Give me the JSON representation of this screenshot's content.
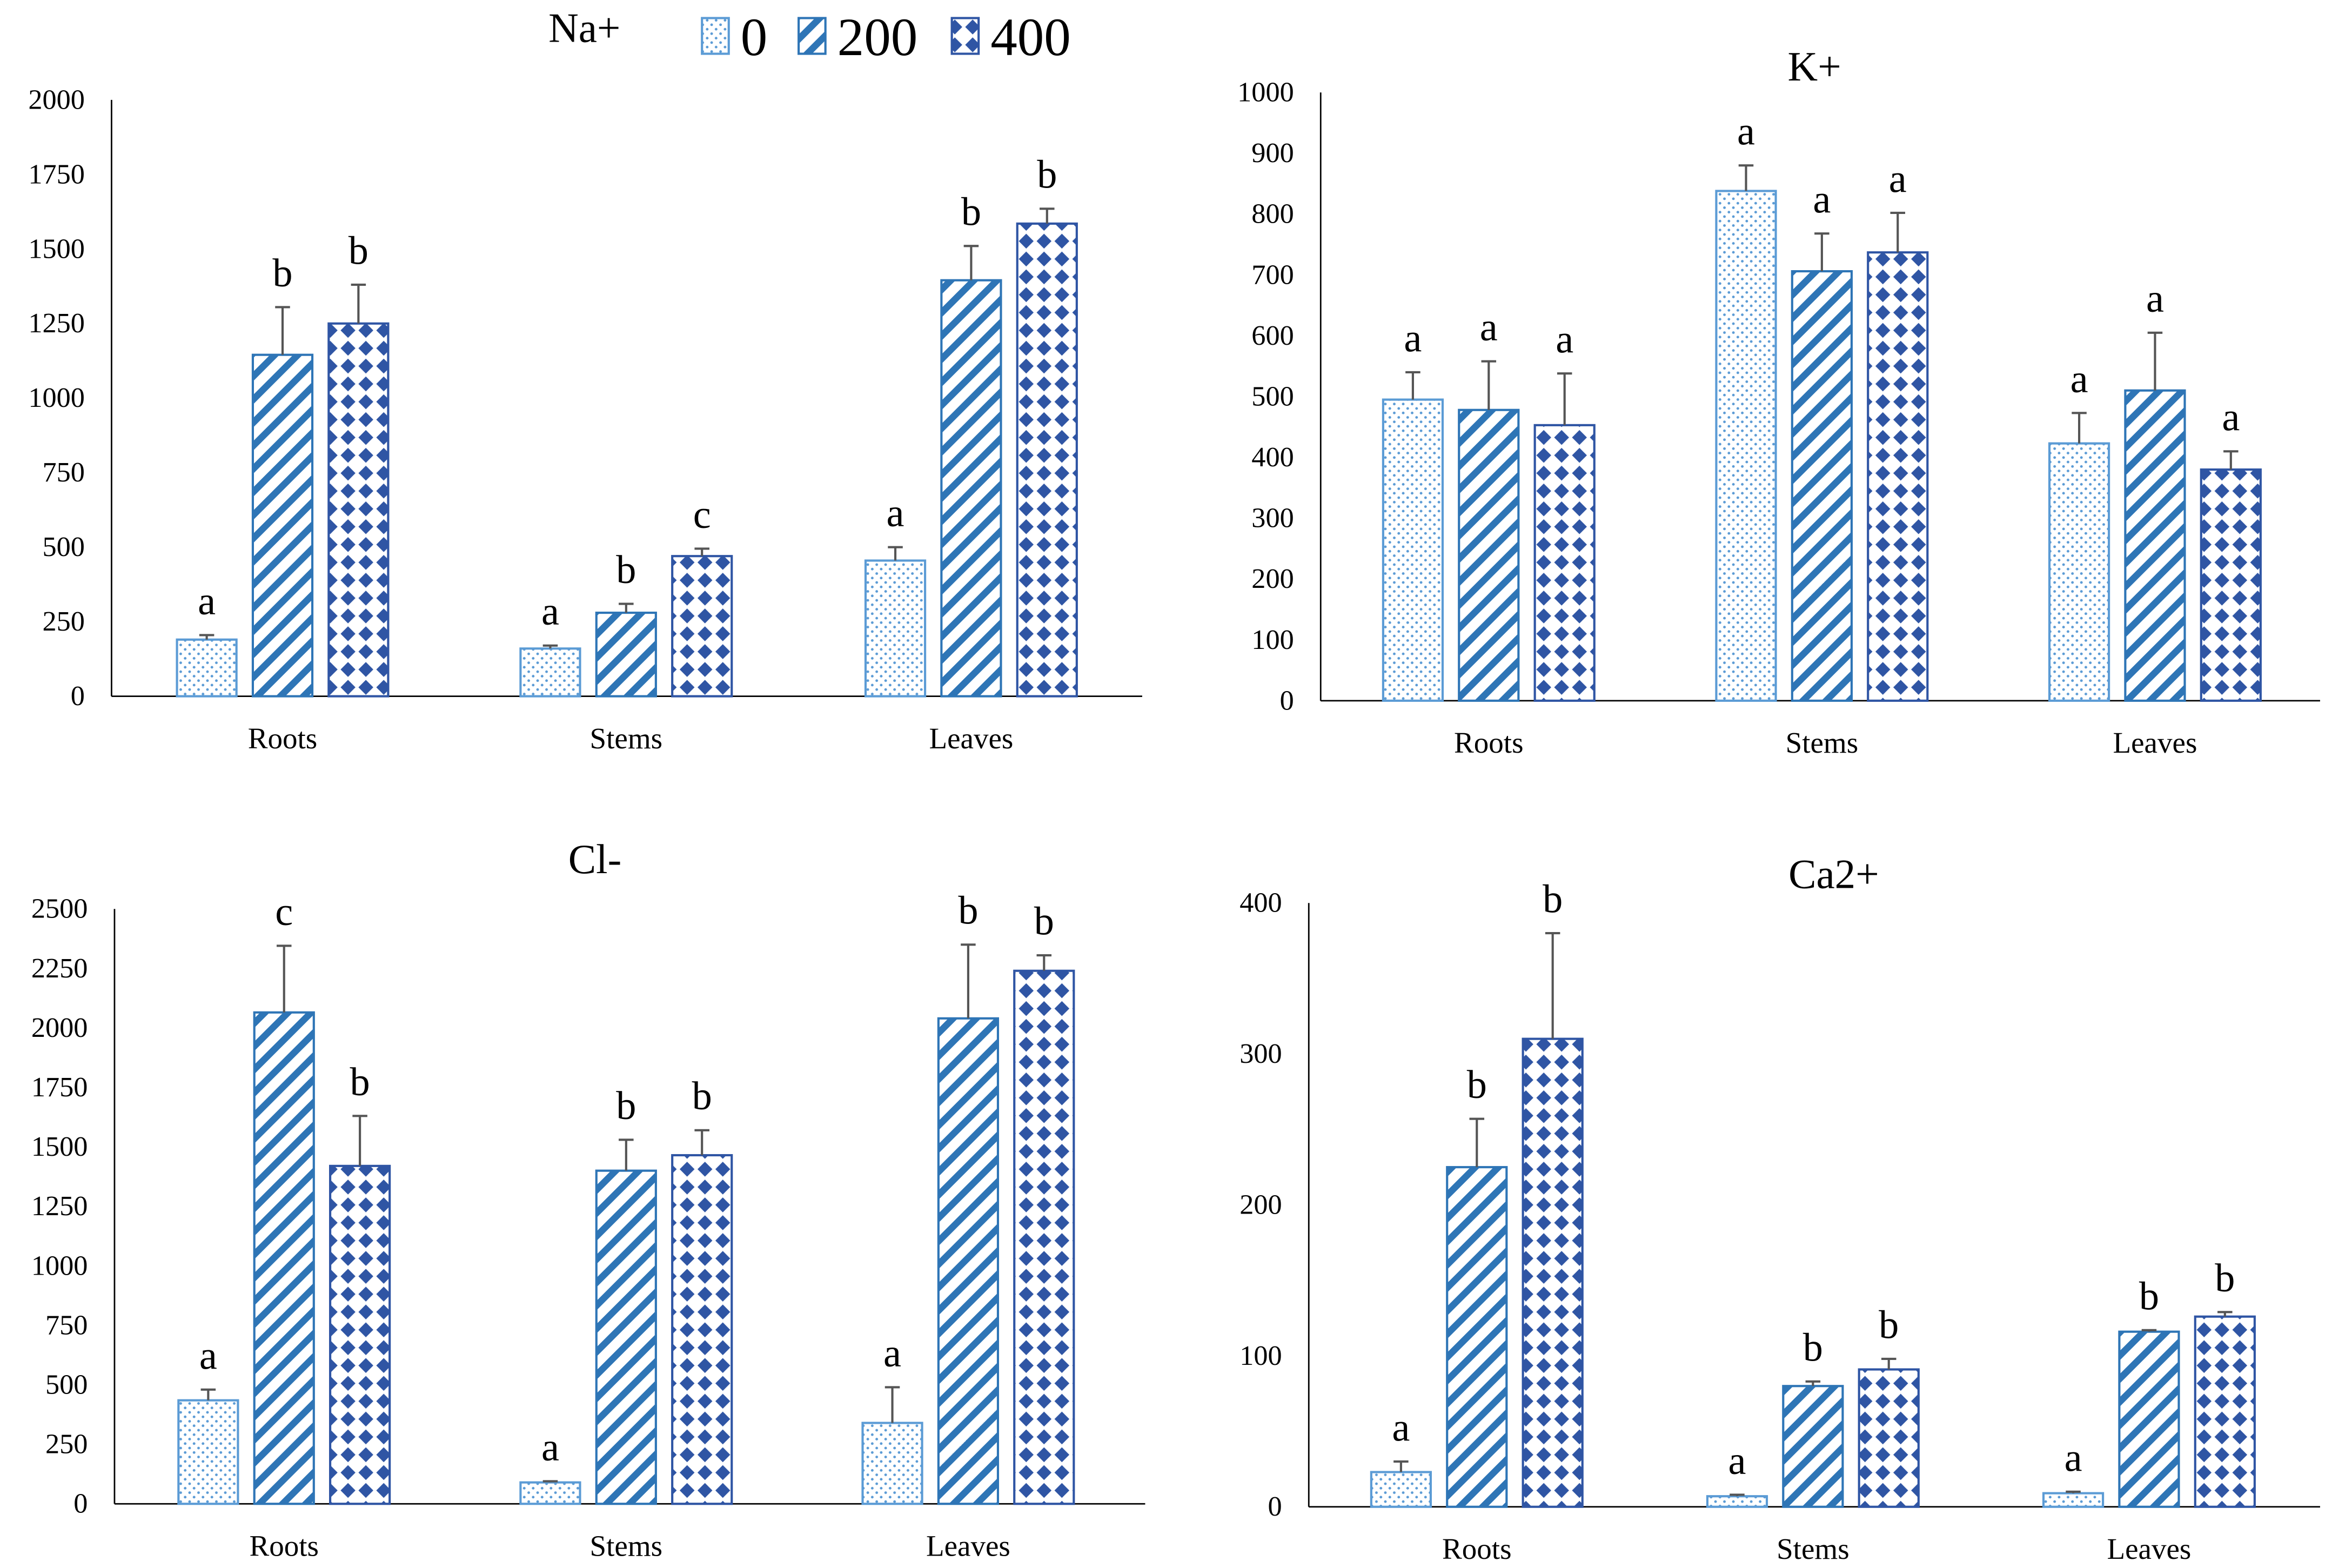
{
  "legend": {
    "items": [
      "0",
      "200",
      "400"
    ]
  },
  "colors": {
    "s0": "#5b9bd5",
    "s200": "#2e75b6",
    "s400": "#2f55a4",
    "error": "#555555",
    "axis": "#000000"
  },
  "chart_data": [
    {
      "type": "bar",
      "title": "Na+",
      "categories": [
        "Roots",
        "Stems",
        "Leaves"
      ],
      "ylim": [
        0,
        2000
      ],
      "yticks": [
        0,
        250,
        500,
        750,
        1000,
        1250,
        1500,
        1750,
        2000
      ],
      "series": [
        {
          "name": "0",
          "values": [
            190,
            160,
            455
          ],
          "errors": [
            15,
            10,
            45
          ],
          "letters": [
            "a",
            "a",
            "a"
          ]
        },
        {
          "name": "200",
          "values": [
            1145,
            280,
            1395
          ],
          "errors": [
            160,
            30,
            115
          ],
          "letters": [
            "b",
            "b",
            "b"
          ]
        },
        {
          "name": "400",
          "values": [
            1250,
            470,
            1585
          ],
          "errors": [
            130,
            25,
            50
          ],
          "letters": [
            "b",
            "c",
            "b"
          ]
        }
      ]
    },
    {
      "type": "bar",
      "title": "K+",
      "categories": [
        "Roots",
        "Stems",
        "Leaves"
      ],
      "ylim": [
        0,
        1000
      ],
      "yticks": [
        0,
        100,
        200,
        300,
        400,
        500,
        600,
        700,
        800,
        900,
        1000
      ],
      "series": [
        {
          "name": "0",
          "values": [
            495,
            838,
            423
          ],
          "errors": [
            45,
            42,
            50
          ],
          "letters": [
            "a",
            "a",
            "a"
          ]
        },
        {
          "name": "200",
          "values": [
            478,
            706,
            510
          ],
          "errors": [
            80,
            62,
            95
          ],
          "letters": [
            "a",
            "a",
            "a"
          ]
        },
        {
          "name": "400",
          "values": [
            453,
            737,
            380
          ],
          "errors": [
            85,
            65,
            30
          ],
          "letters": [
            "a",
            "a",
            "a"
          ]
        }
      ]
    },
    {
      "type": "bar",
      "title": "Cl-",
      "categories": [
        "Roots",
        "Stems",
        "Leaves"
      ],
      "ylim": [
        0,
        2500
      ],
      "yticks": [
        0,
        250,
        500,
        750,
        1000,
        1250,
        1500,
        1750,
        2000,
        2250,
        2500
      ],
      "series": [
        {
          "name": "0",
          "values": [
            435,
            90,
            340
          ],
          "errors": [
            45,
            5,
            150
          ],
          "letters": [
            "a",
            "a",
            "a"
          ]
        },
        {
          "name": "200",
          "values": [
            2065,
            1400,
            2040
          ],
          "errors": [
            280,
            130,
            310
          ],
          "letters": [
            "c",
            "b",
            "b"
          ]
        },
        {
          "name": "400",
          "values": [
            1420,
            1465,
            2240
          ],
          "errors": [
            210,
            105,
            65
          ],
          "letters": [
            "b",
            "b",
            "b"
          ]
        }
      ]
    },
    {
      "type": "bar",
      "title": "Ca2+",
      "categories": [
        "Roots",
        "Stems",
        "Leaves"
      ],
      "ylim": [
        0,
        400
      ],
      "yticks": [
        0,
        100,
        200,
        300,
        400
      ],
      "series": [
        {
          "name": "0",
          "values": [
            23,
            7,
            9
          ],
          "errors": [
            7,
            1,
            1
          ],
          "letters": [
            "a",
            "a",
            "a"
          ]
        },
        {
          "name": "200",
          "values": [
            225,
            80,
            116
          ],
          "errors": [
            32,
            3,
            1
          ],
          "letters": [
            "b",
            "b",
            "b"
          ]
        },
        {
          "name": "400",
          "values": [
            310,
            91,
            126
          ],
          "errors": [
            70,
            7,
            3
          ],
          "letters": [
            "b",
            "b",
            "b"
          ]
        }
      ]
    }
  ]
}
